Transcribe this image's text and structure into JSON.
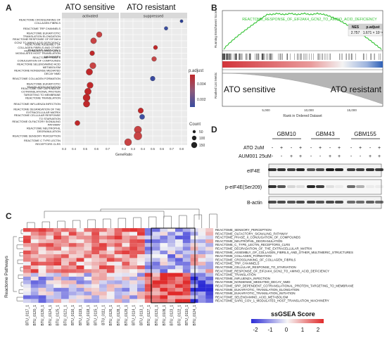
{
  "panels": {
    "a": "A",
    "b": "B",
    "c": "C",
    "d": "D"
  },
  "panelA": {
    "title_left": "ATO sensitive",
    "title_right": "ATO resistant",
    "strip_left": "activated",
    "strip_right": "suppressed",
    "xlabel": "GeneRatio",
    "xticks_left": [
      "0.3",
      "0.4",
      "0.5",
      "0.6",
      "0.7"
    ],
    "xticks_right": [
      "0.2",
      "0.3",
      "0.4",
      "0.5",
      "0.6",
      "0.7",
      "0.8"
    ],
    "terms": [
      [
        "REACTOME CROSSLINKING OF",
        "COLLAGEN FIBRILS"
      ],
      [
        "REACTOME TRP CHANNELS"
      ],
      [
        "REACTOME EUKARYOTIC",
        "TRANSLATION ELONGATION"
      ],
      [
        "REACTOME RESPONSE OF EIF2AK4",
        "GCN2 TO AMINO ACID DEFICIENCY"
      ],
      [
        "REACTOME ASSEMBLY OF",
        "COLLAGEN FIBRILS AND OTHER",
        "MULTIMERIC STRUCTURES"
      ],
      [
        "REACTOME SARS COV 1",
        "MODULATES HOST TRANSLATION",
        "MACHINERY"
      ],
      [
        "REACTOME PHASE II",
        "CONJUGATION OF COMPOUNDS"
      ],
      [
        "REACTOME SELENOAMINO ACID",
        "METABOLISM"
      ],
      [
        "REACTOME NONSENSE MEDIATED",
        "DECAY NMD"
      ],
      [
        "REACTOME COLLAGEN FORMATION"
      ],
      [
        "REACTOME EUKARYOTIC",
        "TRANSLATION INITIATION"
      ],
      [
        "REACTOME SRP DEPENDENT",
        "COTRANSLATIONAL PROTEIN",
        "TARGETING TO MEMBRANE"
      ],
      [
        "REACTOME TRANSLATION"
      ],
      [
        "REACTOME INFLUENZA INFECTION"
      ],
      [
        "REACTOME DEGRADATION OF THE",
        "EXTRACELLULAR MATRIX"
      ],
      [
        "REACTOME CELLULAR RESPONSE",
        "TO STARVATION"
      ],
      [
        "REACTOME OLFACTORY SIGNALING",
        "PATHWAY"
      ],
      [
        "REACTOME NEUTROPHIL",
        "DEGRANULATION"
      ],
      [
        "REACTOME SENSORY PERCEPTION"
      ],
      [
        "REACTOME C TYPE LECTIN",
        "RECEPTORS CLRS"
      ]
    ],
    "legend_padj_title": "p.adjust",
    "legend_padj_ticks": [
      "0.004",
      "0.002"
    ],
    "legend_count_title": "Count",
    "legend_count_ticks": [
      "50",
      "100",
      "150"
    ]
  },
  "panelB": {
    "title": "REACTOME_RESPONSE_OF_EIF2AK4_GCN2_TO_AMINO_ACID_DEFICIENCY",
    "ylabel_top": "Running Enrichment Score",
    "ylabel_bottom": "Ranked List Metric",
    "xlabel": "Rank in Ordered Dataset",
    "xticks": [
      "5,000",
      "10,000",
      "15,000"
    ],
    "nes_header": "NES",
    "padj_header": "p.adjust",
    "nes_value": "2.757",
    "padj_value": "1.671 × 10⁻⁶",
    "label_left": "ATO sensitive",
    "label_right": "ATO resistant"
  },
  "panelC": {
    "ylabel": "Reactome Pathways",
    "rows": [
      "REACTOME_SENSORY_PERCEPTION",
      "REACTOME_OLFACTORY_SIGNALING_PATHWAY",
      "REACTOME_PHASE_II_CONJUGATION_OF_COMPOUNDS",
      "REACTOME_NEUTROPHIL_DEGRANULATION",
      "REACTOME_C_TYPE_LECTIN_RECEPTORS_CLRS",
      "REACTOME_DEGRADATION_OF_THE_EXTRACELLULAR_MATRIX",
      "REACTOME_ASSEMBLY_OF_COLLAGEN_FIBRILS_AND_OTHER_MULTIMERIC_STRUCTURES",
      "REACTOME_COLLAGEN_FORMATION",
      "REACTOME_CROSSLINKING_OF_COLLAGEN_FIBRILS",
      "REACTOME_TRP_CHANNELS",
      "REACTOME_CELLULAR_RESPONSE_TO_STARVATION",
      "REACTOME_RESPONSE_OF_EIF2AK4_GCN2_TO_AMINO_ACID_DEFICIENCY",
      "REACTOME_TRANSLATION",
      "REACTOME_INFLUENZA_INFECTION",
      "REACTOME_NONSENSE_MEDIATED_DECAY_NMD",
      "REACTOME_SRP_DEPENDENT_COTRANSLATIONAL_PROTEIN_TARGETING_TO_MEMBRANE",
      "REACTOME_EUKARYOTIC_TRANSLATION_ELONGATION",
      "REACTOME_EUKARYOTIC_TRANSLATION_INITIATION",
      "REACTOME_SELENOAMINO_ACID_METABOLISM",
      "REACTOME_SARS_COV_1_MODULATES_HOST_TRANSLATION_MACHINERY"
    ],
    "cols": [
      "BTU_0117_1",
      "BTU_0120_1",
      "BTU_0130_1",
      "BTU_0124_1",
      "BTU_0125_1",
      "BTU_0121_1",
      "BTU_0116_1",
      "BTU_0119_1",
      "BTU_0118_1",
      "BTU_0115_1",
      "BTU_0111_1",
      "BTU_0126_1",
      "BTU_0128_1",
      "BTU_0129_1",
      "BTU_0114_1",
      "BTU_0113_1",
      "BTU_0127_1",
      "BTU_0131_1",
      "BTU_0109_1",
      "BTU_0123_1",
      "BTU_0122_1",
      "BTU_0110_1",
      "BTU_0124_1"
    ],
    "legend_title": "ssGSEA Score",
    "legend_ticks": [
      "-2",
      "-1",
      "0",
      "1",
      "2"
    ]
  },
  "panelD": {
    "groups": [
      "GBM10",
      "GBM43",
      "GBM155"
    ],
    "row_labels": [
      "ATO 2uM",
      "AUM001 25uM"
    ],
    "signs": {
      "ato": [
        "-",
        "+",
        "-",
        "+",
        "-",
        "+",
        "-",
        "+",
        "-",
        "+",
        "-",
        "+"
      ],
      "aum": [
        "-",
        "-",
        "+",
        "+",
        "-",
        "-",
        "+",
        "+",
        "-",
        "-",
        "+",
        "+"
      ]
    },
    "blots": [
      "eIF4E",
      "p-eIF4E(Ser209)",
      "B-actin"
    ]
  },
  "colors": {
    "red": "#c0282a",
    "blue": "#1f3d9c",
    "white": "#f4f4f4",
    "green": "#33c233"
  }
}
